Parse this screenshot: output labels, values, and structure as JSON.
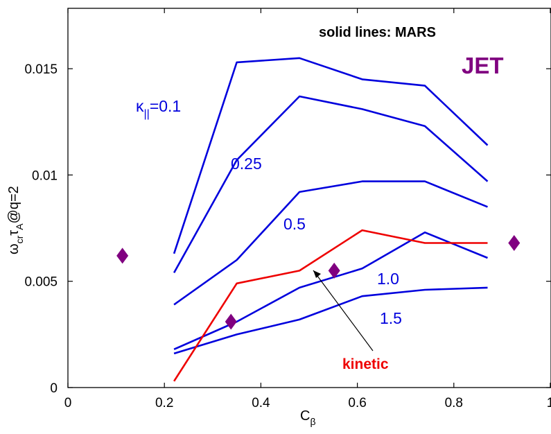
{
  "chart_data": {
    "type": "line",
    "xlabel": {
      "main": "C",
      "sub": "β"
    },
    "ylabel": {
      "p1": "ω",
      "p1sub": "cr",
      "p2": "τ",
      "p2sub": "A",
      "p3": "@q=2"
    },
    "xlim": [
      0,
      1
    ],
    "ylim": [
      0,
      0.018
    ],
    "xticks": [
      0,
      0.2,
      0.4,
      0.6,
      0.8,
      1
    ],
    "xtick_labels": [
      "0",
      "0.2",
      "0.4",
      "0.6",
      "0.8",
      "1"
    ],
    "yticks": [
      0,
      0.005,
      0.01,
      0.015
    ],
    "ytick_labels": [
      "0",
      "0.005",
      "0.01",
      "0.015"
    ],
    "grid": false,
    "annotation_note": "solid lines: MARS",
    "annotation_brand": "JET",
    "colors": {
      "mars": "#0000dd",
      "kinetic": "#ee0000",
      "jet": "#800080"
    },
    "series": [
      {
        "label": "0.1",
        "x": [
          0.22,
          0.35,
          0.48,
          0.61,
          0.74,
          0.87
        ],
        "y": [
          0.0063,
          0.0153,
          0.0155,
          0.0145,
          0.0142,
          0.0114
        ]
      },
      {
        "label": "0.25",
        "x": [
          0.22,
          0.35,
          0.48,
          0.61,
          0.74,
          0.87
        ],
        "y": [
          0.0054,
          0.0107,
          0.0137,
          0.0131,
          0.0123,
          0.0097
        ]
      },
      {
        "label": "0.5",
        "x": [
          0.22,
          0.35,
          0.48,
          0.61,
          0.74,
          0.87
        ],
        "y": [
          0.0039,
          0.006,
          0.0092,
          0.0097,
          0.0097,
          0.0085
        ]
      },
      {
        "label": "1.0",
        "x": [
          0.22,
          0.35,
          0.48,
          0.61,
          0.74,
          0.87
        ],
        "y": [
          0.0018,
          0.0031,
          0.0047,
          0.0056,
          0.0073,
          0.0061
        ]
      },
      {
        "label": "1.5",
        "x": [
          0.22,
          0.35,
          0.48,
          0.61,
          0.74,
          0.87
        ],
        "y": [
          0.0016,
          0.0025,
          0.0032,
          0.0043,
          0.0046,
          0.0047
        ]
      },
      {
        "label": "kinetic",
        "x": [
          0.22,
          0.35,
          0.48,
          0.61,
          0.74,
          0.87
        ],
        "y": [
          0.0003,
          0.0049,
          0.0055,
          0.0074,
          0.0068,
          0.0068
        ]
      }
    ],
    "kappa_label": {
      "sym": "κ",
      "sub": "||",
      "val": "=0.1"
    },
    "jet_points": {
      "x": [
        0.113,
        0.338,
        0.552,
        0.925
      ],
      "y": [
        0.0062,
        0.0031,
        0.0055,
        0.0068
      ]
    }
  }
}
